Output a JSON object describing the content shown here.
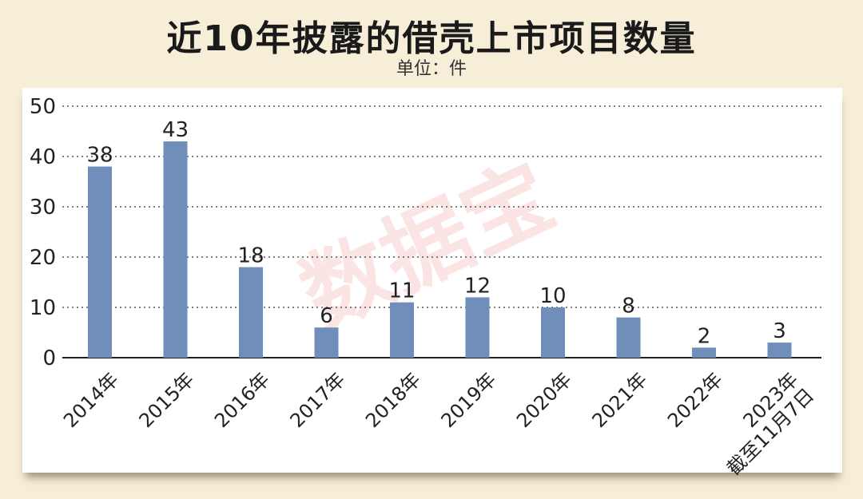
{
  "title": "近10年披露的借壳上市项目数量",
  "unit_label": "单位：件",
  "watermark": "数据宝",
  "colors": {
    "bar": "#6f8fba",
    "grid": "#555555",
    "background": "#f7eed8",
    "panel": "#ffffff"
  },
  "chart_data": {
    "type": "bar",
    "categories": [
      "2014年",
      "2015年",
      "2016年",
      "2017年",
      "2018年",
      "2019年",
      "2020年",
      "2021年",
      "2022年",
      "2023年截至11月7日"
    ],
    "category_label_lines": [
      [
        "2014年"
      ],
      [
        "2015年"
      ],
      [
        "2016年"
      ],
      [
        "2017年"
      ],
      [
        "2018年"
      ],
      [
        "2019年"
      ],
      [
        "2020年"
      ],
      [
        "2021年"
      ],
      [
        "2022年"
      ],
      [
        "2023年",
        "截至11月7日"
      ]
    ],
    "values": [
      38,
      43,
      18,
      6,
      11,
      12,
      10,
      8,
      2,
      3
    ],
    "yticks": [
      0,
      10,
      20,
      30,
      40,
      50
    ],
    "ylim": [
      0,
      50
    ],
    "grid": "horizontal-dotted",
    "data_labels": true
  }
}
